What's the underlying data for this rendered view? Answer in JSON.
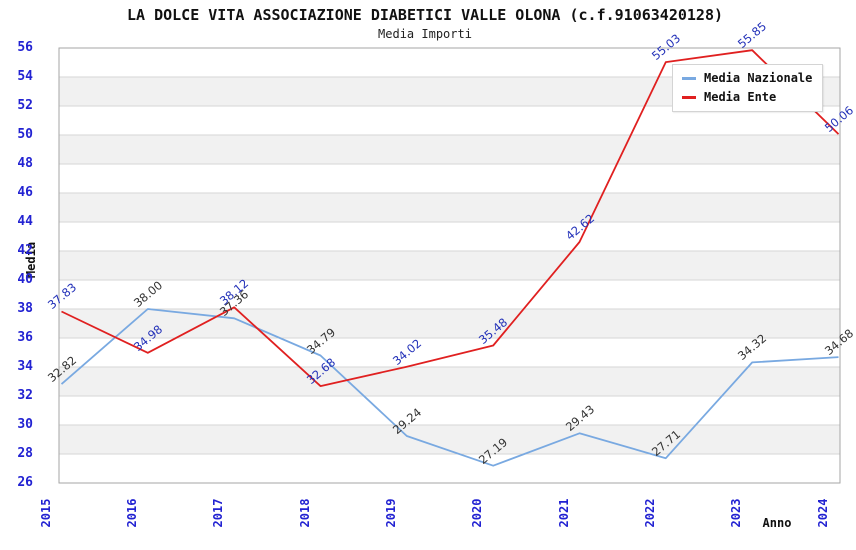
{
  "header": {
    "title": "LA DOLCE VITA ASSOCIAZIONE DIABETICI VALLE OLONA (c.f.91063420128)",
    "subtitle": "Media Importi"
  },
  "chart_data": {
    "type": "line",
    "x": [
      "2015",
      "2016",
      "2017",
      "2018",
      "2019",
      "2020",
      "2021",
      "2022",
      "2023",
      "2024"
    ],
    "xlabel": "Anno",
    "ylabel": "Media",
    "ylim": [
      26,
      56
    ],
    "ytick_step": 2,
    "grid": "horizontal alternating bands with gridlines every 2 units",
    "legend_position": "top-right",
    "series": [
      {
        "name": "Media Nazionale",
        "color": "#79a9e1",
        "label_color": "#333333",
        "values": [
          "32.82",
          "38.00",
          "37.36",
          "34.79",
          "29.24",
          "27.19",
          "29.43",
          "27.71",
          "34.32",
          "34.68"
        ]
      },
      {
        "name": "Media Ente",
        "color": "#e02020",
        "label_color": "#2230b8",
        "values": [
          "37.83",
          "34.98",
          "38.12",
          "32.68",
          "34.02",
          "35.48",
          "42.62",
          "55.03",
          "55.85",
          "50.06"
        ]
      }
    ]
  },
  "colors": {
    "axis_tick": "#2222d2",
    "band": "#f1f1f1",
    "gridline": "#d6d6d6",
    "plot_border": "#a6a6a6",
    "background": "#ffffff"
  }
}
